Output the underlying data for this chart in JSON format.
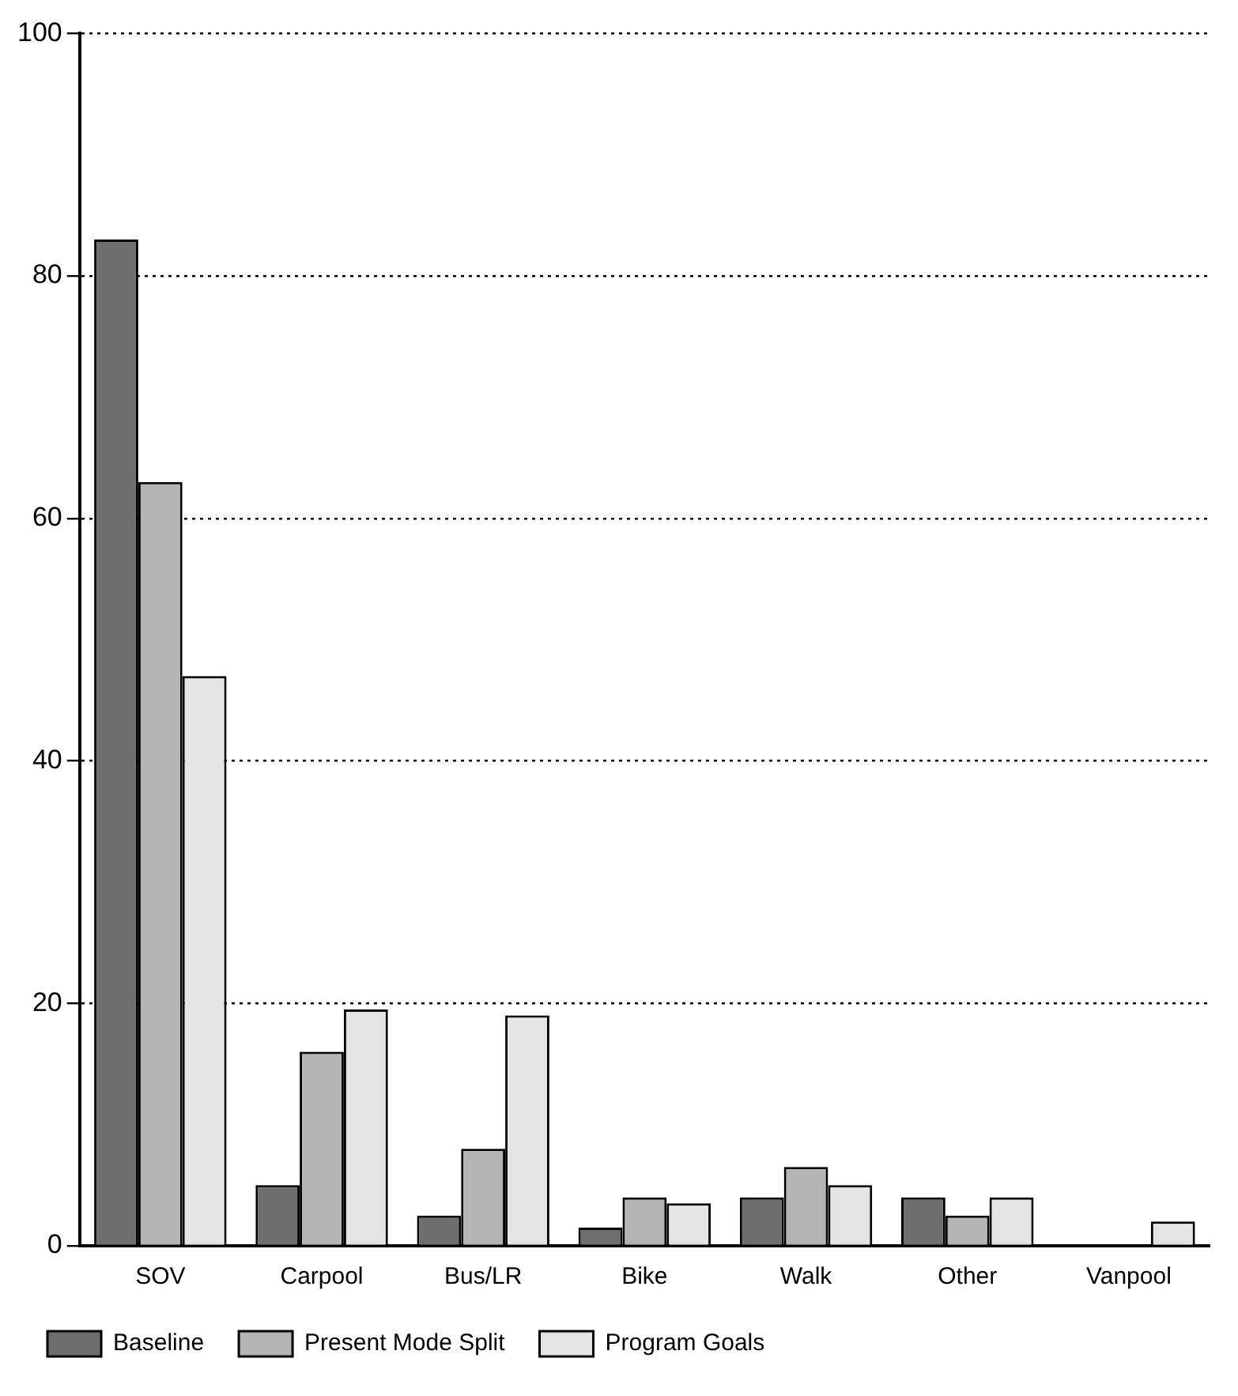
{
  "chart_data": {
    "type": "bar",
    "categories": [
      "SOV",
      "Carpool",
      "Bus/LR",
      "Bike",
      "Walk",
      "Other",
      "Vanpool"
    ],
    "series": [
      {
        "name": "Baseline",
        "color": "#6e6e6e",
        "values": [
          83,
          5,
          2.5,
          1.5,
          4,
          4,
          null
        ]
      },
      {
        "name": "Present Mode Split",
        "color": "#b4b4b4",
        "values": [
          63,
          16,
          8,
          4,
          6.5,
          2.5,
          null
        ]
      },
      {
        "name": "Program Goals",
        "color": "#e4e4e4",
        "values": [
          47,
          19.5,
          19,
          3.5,
          5,
          4,
          2
        ]
      }
    ],
    "ylim": [
      0,
      100
    ],
    "yticks": [
      0,
      20,
      40,
      60,
      80,
      100
    ],
    "grid": "y",
    "legend": "bottom"
  }
}
